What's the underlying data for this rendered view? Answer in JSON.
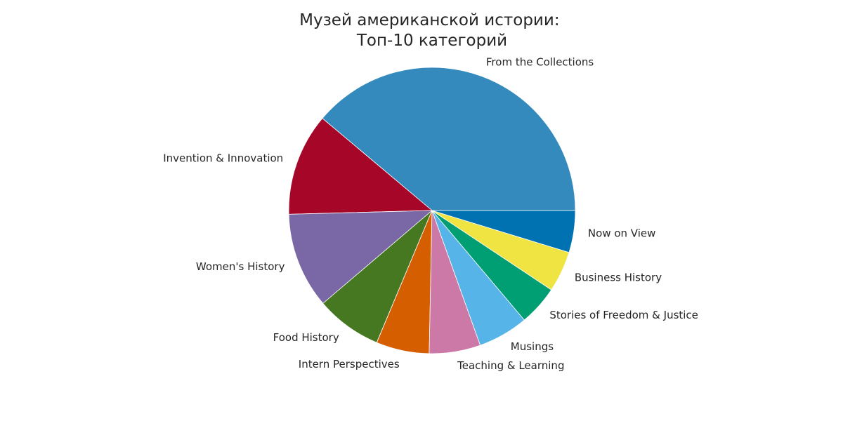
{
  "chart_data": {
    "type": "pie",
    "title": "Музей американской истории:\nТоп-10 категорий",
    "categories": [
      "From the Collections",
      "Invention & Innovation",
      "Women's History",
      "Food History",
      "Intern Perspectives",
      "Teaching & Learning",
      "Musings",
      "Stories of Freedom & Justice",
      "Business History",
      "Now on View"
    ],
    "values": [
      37.0,
      11.0,
      10.3,
      7.1,
      5.7,
      5.5,
      5.4,
      4.3,
      4.4,
      4.5
    ],
    "colors": [
      "#348abd",
      "#a60628",
      "#7a68a6",
      "#467821",
      "#d55e00",
      "#cc79a7",
      "#56b4e9",
      "#009e73",
      "#f0e442",
      "#0072b2"
    ],
    "start_angle_deg": 0,
    "direction": "counterclockwise",
    "legend": "none"
  }
}
